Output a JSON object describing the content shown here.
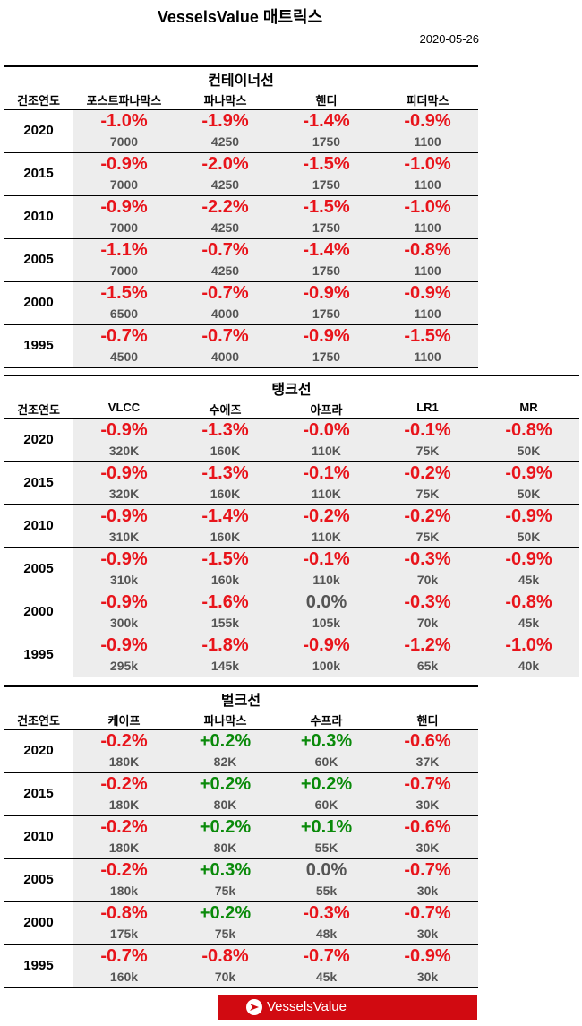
{
  "header": {
    "title": "VesselsValue 매트릭스",
    "date": "2020-05-26"
  },
  "sections": [
    {
      "title": "컨테이너선",
      "columns": [
        "건조연도",
        "포스트파나막스",
        "파나막스",
        "핸디",
        "피더막스"
      ],
      "rows": [
        {
          "year": "2020",
          "cells": [
            {
              "change": "-1.0%",
              "value": "7000"
            },
            {
              "change": "-1.9%",
              "value": "4250"
            },
            {
              "change": "-1.4%",
              "value": "1750"
            },
            {
              "change": "-0.9%",
              "value": "1100"
            }
          ]
        },
        {
          "year": "2015",
          "cells": [
            {
              "change": "-0.9%",
              "value": "7000"
            },
            {
              "change": "-2.0%",
              "value": "4250"
            },
            {
              "change": "-1.5%",
              "value": "1750"
            },
            {
              "change": "-1.0%",
              "value": "1100"
            }
          ]
        },
        {
          "year": "2010",
          "cells": [
            {
              "change": "-0.9%",
              "value": "7000"
            },
            {
              "change": "-2.2%",
              "value": "4250"
            },
            {
              "change": "-1.5%",
              "value": "1750"
            },
            {
              "change": "-1.0%",
              "value": "1100"
            }
          ]
        },
        {
          "year": "2005",
          "cells": [
            {
              "change": "-1.1%",
              "value": "7000"
            },
            {
              "change": "-0.7%",
              "value": "4250"
            },
            {
              "change": "-1.4%",
              "value": "1750"
            },
            {
              "change": "-0.8%",
              "value": "1100"
            }
          ]
        },
        {
          "year": "2000",
          "cells": [
            {
              "change": "-1.5%",
              "value": "6500"
            },
            {
              "change": "-0.7%",
              "value": "4000"
            },
            {
              "change": "-0.9%",
              "value": "1750"
            },
            {
              "change": "-0.9%",
              "value": "1100"
            }
          ]
        },
        {
          "year": "1995",
          "cells": [
            {
              "change": "-0.7%",
              "value": "4500"
            },
            {
              "change": "-0.7%",
              "value": "4000"
            },
            {
              "change": "-0.9%",
              "value": "1750"
            },
            {
              "change": "-1.5%",
              "value": "1100"
            }
          ]
        }
      ]
    },
    {
      "title": "탱크선",
      "columns": [
        "건조연도",
        "VLCC",
        "수에즈",
        "아프라",
        "LR1",
        "MR"
      ],
      "rows": [
        {
          "year": "2020",
          "cells": [
            {
              "change": "-0.9%",
              "value": "320K"
            },
            {
              "change": "-1.3%",
              "value": "160K"
            },
            {
              "change": "-0.0%",
              "value": "110K"
            },
            {
              "change": "-0.1%",
              "value": "75K"
            },
            {
              "change": "-0.8%",
              "value": "50K"
            }
          ]
        },
        {
          "year": "2015",
          "cells": [
            {
              "change": "-0.9%",
              "value": "320K"
            },
            {
              "change": "-1.3%",
              "value": "160K"
            },
            {
              "change": "-0.1%",
              "value": "110K"
            },
            {
              "change": "-0.2%",
              "value": "75K"
            },
            {
              "change": "-0.9%",
              "value": "50K"
            }
          ]
        },
        {
          "year": "2010",
          "cells": [
            {
              "change": "-0.9%",
              "value": "310K"
            },
            {
              "change": "-1.4%",
              "value": "160K"
            },
            {
              "change": "-0.2%",
              "value": "110K"
            },
            {
              "change": "-0.2%",
              "value": "75K"
            },
            {
              "change": "-0.9%",
              "value": "50K"
            }
          ]
        },
        {
          "year": "2005",
          "cells": [
            {
              "change": "-0.9%",
              "value": "310k"
            },
            {
              "change": "-1.5%",
              "value": "160k"
            },
            {
              "change": "-0.1%",
              "value": "110k"
            },
            {
              "change": "-0.3%",
              "value": "70k"
            },
            {
              "change": "-0.9%",
              "value": "45k"
            }
          ]
        },
        {
          "year": "2000",
          "cells": [
            {
              "change": "-0.9%",
              "value": "300k"
            },
            {
              "change": "-1.6%",
              "value": "155k"
            },
            {
              "change": "0.0%",
              "value": "105k"
            },
            {
              "change": "-0.3%",
              "value": "70k"
            },
            {
              "change": "-0.8%",
              "value": "45k"
            }
          ]
        },
        {
          "year": "1995",
          "cells": [
            {
              "change": "-0.9%",
              "value": "295k"
            },
            {
              "change": "-1.8%",
              "value": "145k"
            },
            {
              "change": "-0.9%",
              "value": "100k"
            },
            {
              "change": "-1.2%",
              "value": "65k"
            },
            {
              "change": "-1.0%",
              "value": "40k"
            }
          ]
        }
      ]
    },
    {
      "title": "벌크선",
      "columns": [
        "건조연도",
        "케이프",
        "파나막스",
        "수프라",
        "핸디"
      ],
      "rows": [
        {
          "year": "2020",
          "cells": [
            {
              "change": "-0.2%",
              "value": "180K"
            },
            {
              "change": "+0.2%",
              "value": "82K"
            },
            {
              "change": "+0.3%",
              "value": "60K"
            },
            {
              "change": "-0.6%",
              "value": "37K"
            }
          ]
        },
        {
          "year": "2015",
          "cells": [
            {
              "change": "-0.2%",
              "value": "180K"
            },
            {
              "change": "+0.2%",
              "value": "80K"
            },
            {
              "change": "+0.2%",
              "value": "60K"
            },
            {
              "change": "-0.7%",
              "value": "30K"
            }
          ]
        },
        {
          "year": "2010",
          "cells": [
            {
              "change": "-0.2%",
              "value": "180K"
            },
            {
              "change": "+0.2%",
              "value": "80K"
            },
            {
              "change": "+0.1%",
              "value": "55K"
            },
            {
              "change": "-0.6%",
              "value": "30K"
            }
          ]
        },
        {
          "year": "2005",
          "cells": [
            {
              "change": "-0.2%",
              "value": "180k"
            },
            {
              "change": "+0.3%",
              "value": "75k"
            },
            {
              "change": "0.0%",
              "value": "55k"
            },
            {
              "change": "-0.7%",
              "value": "30k"
            }
          ]
        },
        {
          "year": "2000",
          "cells": [
            {
              "change": "-0.8%",
              "value": "175k"
            },
            {
              "change": "+0.2%",
              "value": "75k"
            },
            {
              "change": "-0.3%",
              "value": "48k"
            },
            {
              "change": "-0.7%",
              "value": "30k"
            }
          ]
        },
        {
          "year": "1995",
          "cells": [
            {
              "change": "-0.7%",
              "value": "160k"
            },
            {
              "change": "-0.8%",
              "value": "70k"
            },
            {
              "change": "-0.7%",
              "value": "45k"
            },
            {
              "change": "-0.9%",
              "value": "30k"
            }
          ]
        }
      ]
    }
  ],
  "footer": {
    "logo": "VesselsValue"
  }
}
